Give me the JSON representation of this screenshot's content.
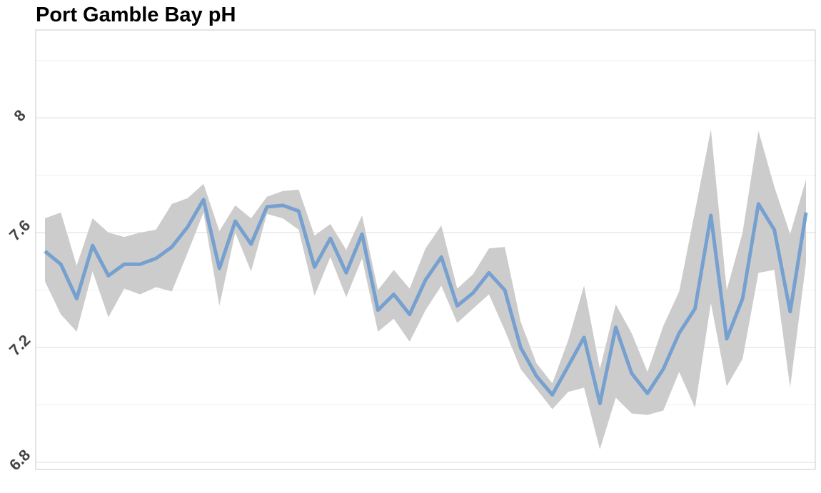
{
  "chart_data": {
    "type": "line",
    "title": "Port Gamble Bay pH",
    "categories": [
      null,
      null,
      null,
      null,
      null,
      null,
      null,
      null,
      null,
      null,
      null,
      null,
      null,
      null,
      null,
      null,
      null,
      null,
      null,
      null,
      null,
      null,
      null,
      null,
      null,
      null,
      null,
      null,
      null,
      null,
      null,
      null,
      null,
      null,
      null,
      null,
      null,
      null,
      null,
      null,
      null,
      null,
      null,
      null,
      null,
      null,
      null,
      null,
      null
    ],
    "values": [
      7.535,
      7.49,
      7.37,
      7.555,
      7.45,
      7.49,
      7.49,
      7.51,
      7.55,
      7.62,
      7.715,
      7.475,
      7.64,
      7.56,
      7.69,
      7.695,
      7.675,
      7.48,
      7.58,
      7.46,
      7.595,
      7.33,
      7.385,
      7.315,
      7.435,
      7.515,
      7.345,
      7.39,
      7.46,
      7.4,
      7.2,
      7.1,
      7.035,
      7.135,
      7.235,
      7.005,
      7.27,
      7.11,
      7.04,
      7.125,
      7.25,
      7.335,
      7.66,
      7.23,
      7.37,
      7.7,
      7.61,
      7.325,
      7.67
    ],
    "upper": [
      7.65,
      7.67,
      7.485,
      7.65,
      7.6,
      7.585,
      7.6,
      7.61,
      7.7,
      7.72,
      7.77,
      7.605,
      7.695,
      7.65,
      7.725,
      7.745,
      7.75,
      7.59,
      7.63,
      7.54,
      7.66,
      7.4,
      7.47,
      7.405,
      7.545,
      7.625,
      7.405,
      7.455,
      7.545,
      7.55,
      7.29,
      7.145,
      7.075,
      7.225,
      7.415,
      7.125,
      7.35,
      7.25,
      7.115,
      7.275,
      7.395,
      7.675,
      7.96,
      7.4,
      7.6,
      7.955,
      7.76,
      7.595,
      7.785
    ],
    "lower": [
      7.43,
      7.315,
      7.255,
      7.465,
      7.305,
      7.405,
      7.385,
      7.41,
      7.395,
      7.53,
      7.67,
      7.345,
      7.6,
      7.465,
      7.665,
      7.65,
      7.61,
      7.38,
      7.515,
      7.375,
      7.51,
      7.255,
      7.3,
      7.22,
      7.33,
      7.415,
      7.285,
      7.335,
      7.385,
      7.26,
      7.125,
      7.055,
      6.985,
      7.045,
      7.06,
      6.845,
      7.025,
      6.97,
      6.965,
      6.98,
      7.115,
      6.99,
      7.355,
      7.065,
      7.16,
      7.46,
      7.47,
      7.06,
      7.495
    ],
    "color": "#76a0cf",
    "band_color": "#cccccc",
    "ylim": [
      6.775,
      8.306
    ],
    "yticks": [
      6.8,
      7.2,
      7.6,
      8.0
    ],
    "minor_yticks": [
      7.0,
      7.4,
      7.8,
      8.2
    ],
    "grid": true
  }
}
